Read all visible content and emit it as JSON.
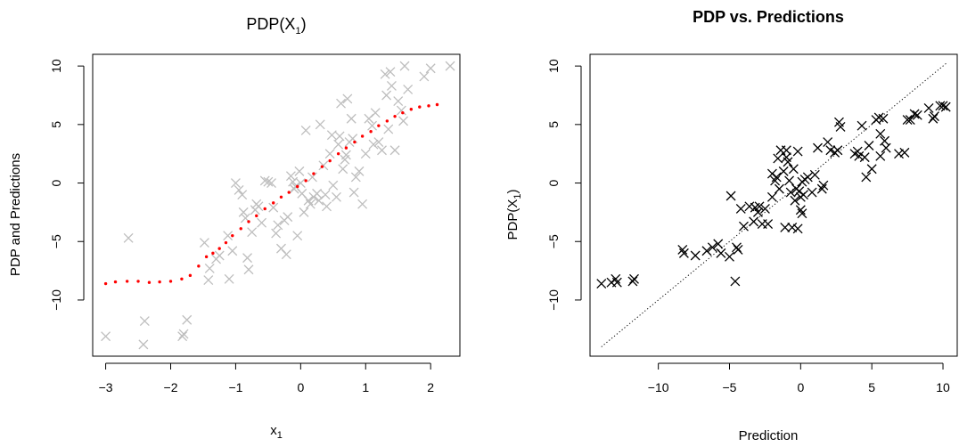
{
  "chart_data": [
    {
      "type": "scatter",
      "title": "PDP(X",
      "title_subscript": "1",
      "title_suffix": ")",
      "xlabel": "x",
      "xlabel_subscript": "1",
      "ylabel": "PDP and Predictions",
      "xlim": [
        -3.2,
        2.45
      ],
      "ylim": [
        -14.8,
        11.0
      ],
      "xticks": [
        -3,
        -2,
        -1,
        0,
        1,
        2
      ],
      "yticks": [
        -10,
        -5,
        0,
        5,
        10
      ],
      "xtick_labels": [
        "−3",
        "−2",
        "−1",
        "0",
        "1",
        "2"
      ],
      "ytick_labels": [
        "−10",
        "−5",
        "0",
        "5",
        "10"
      ],
      "grid": false,
      "colors": {
        "predictions": "#bebebe",
        "pdp": "#ff0000",
        "axes": "#000000"
      },
      "series": [
        {
          "marker": "x",
          "points": [
            [
              -3.0,
              -13.1
            ],
            [
              -2.65,
              -4.7
            ],
            [
              -2.4,
              -11.8
            ],
            [
              -2.42,
              -13.8
            ],
            [
              -1.8,
              -12.9
            ],
            [
              -1.82,
              -13.1
            ],
            [
              -1.75,
              -11.7
            ],
            [
              -1.48,
              -5.1
            ],
            [
              -1.42,
              -8.3
            ],
            [
              -1.4,
              -7.3
            ],
            [
              -1.3,
              -6.5
            ],
            [
              -1.25,
              -6.2
            ],
            [
              -1.12,
              -4.5
            ],
            [
              -1.1,
              -8.2
            ],
            [
              -1.05,
              -5.8
            ],
            [
              -1.0,
              0.0
            ],
            [
              -0.95,
              -0.6
            ],
            [
              -0.9,
              -1.0
            ],
            [
              -0.88,
              -2.5
            ],
            [
              -0.85,
              -3.0
            ],
            [
              -0.82,
              -6.4
            ],
            [
              -0.8,
              -7.4
            ],
            [
              -0.75,
              -4.2
            ],
            [
              -0.7,
              -2.3
            ],
            [
              -0.68,
              -1.8
            ],
            [
              -0.65,
              -2.0
            ],
            [
              -0.6,
              -3.4
            ],
            [
              -0.55,
              0.2
            ],
            [
              -0.5,
              0.1
            ],
            [
              -0.45,
              0.0
            ],
            [
              -0.42,
              -2.1
            ],
            [
              -0.38,
              -4.3
            ],
            [
              -0.35,
              -3.6
            ],
            [
              -0.3,
              -5.6
            ],
            [
              -0.25,
              -3.2
            ],
            [
              -0.22,
              -6.1
            ],
            [
              -0.2,
              -2.9
            ],
            [
              -0.15,
              0.6
            ],
            [
              -0.12,
              0.1
            ],
            [
              -0.1,
              -0.5
            ],
            [
              -0.08,
              -0.3
            ],
            [
              -0.05,
              -4.5
            ],
            [
              -0.02,
              1.0
            ],
            [
              0.0,
              0.0
            ],
            [
              0.02,
              -0.9
            ],
            [
              0.05,
              -2.5
            ],
            [
              0.08,
              4.5
            ],
            [
              0.12,
              -1.5
            ],
            [
              0.15,
              -1.8
            ],
            [
              0.18,
              0.5
            ],
            [
              0.2,
              -1.2
            ],
            [
              0.25,
              -0.9
            ],
            [
              0.28,
              -1.5
            ],
            [
              0.3,
              5.0
            ],
            [
              0.35,
              1.5
            ],
            [
              0.38,
              -1.0
            ],
            [
              0.4,
              -2.0
            ],
            [
              0.45,
              2.5
            ],
            [
              0.48,
              4.1
            ],
            [
              0.5,
              -0.2
            ],
            [
              0.55,
              -1.2
            ],
            [
              0.58,
              3.3
            ],
            [
              0.6,
              4.0
            ],
            [
              0.62,
              6.8
            ],
            [
              0.65,
              1.2
            ],
            [
              0.68,
              2.0
            ],
            [
              0.7,
              2.4
            ],
            [
              0.72,
              7.2
            ],
            [
              0.75,
              3.5
            ],
            [
              0.78,
              5.5
            ],
            [
              0.8,
              3.8
            ],
            [
              0.82,
              -0.8
            ],
            [
              0.85,
              0.5
            ],
            [
              0.9,
              1.0
            ],
            [
              0.95,
              -1.8
            ],
            [
              1.0,
              2.5
            ],
            [
              1.05,
              5.5
            ],
            [
              1.1,
              4.9
            ],
            [
              1.12,
              3.3
            ],
            [
              1.15,
              6.0
            ],
            [
              1.2,
              3.5
            ],
            [
              1.25,
              2.8
            ],
            [
              1.3,
              9.3
            ],
            [
              1.32,
              7.5
            ],
            [
              1.35,
              4.6
            ],
            [
              1.38,
              9.5
            ],
            [
              1.4,
              8.3
            ],
            [
              1.45,
              2.8
            ],
            [
              1.5,
              7.0
            ],
            [
              1.55,
              6.2
            ],
            [
              1.58,
              5.3
            ],
            [
              1.6,
              10.0
            ],
            [
              1.65,
              8.0
            ],
            [
              1.9,
              9.1
            ],
            [
              2.0,
              9.8
            ],
            [
              2.3,
              10.0
            ]
          ]
        },
        {
          "marker": "dot",
          "points": [
            [
              -3.0,
              -8.6
            ],
            [
              -2.85,
              -8.45
            ],
            [
              -2.67,
              -8.4
            ],
            [
              -2.5,
              -8.4
            ],
            [
              -2.33,
              -8.5
            ],
            [
              -2.17,
              -8.45
            ],
            [
              -2.0,
              -8.4
            ],
            [
              -1.83,
              -8.2
            ],
            [
              -1.7,
              -7.9
            ],
            [
              -1.57,
              -7.1
            ],
            [
              -1.45,
              -6.3
            ],
            [
              -1.35,
              -6.0
            ],
            [
              -1.25,
              -5.6
            ],
            [
              -1.15,
              -5.1
            ],
            [
              -1.05,
              -4.5
            ],
            [
              -0.92,
              -3.9
            ],
            [
              -0.8,
              -3.3
            ],
            [
              -0.68,
              -2.8
            ],
            [
              -0.55,
              -2.2
            ],
            [
              -0.42,
              -1.7
            ],
            [
              -0.3,
              -1.2
            ],
            [
              -0.18,
              -0.8
            ],
            [
              -0.05,
              -0.3
            ],
            [
              0.08,
              0.2
            ],
            [
              0.2,
              0.8
            ],
            [
              0.33,
              1.4
            ],
            [
              0.45,
              1.9
            ],
            [
              0.58,
              2.5
            ],
            [
              0.7,
              3.0
            ],
            [
              0.83,
              3.5
            ],
            [
              0.95,
              4.0
            ],
            [
              1.08,
              4.4
            ],
            [
              1.2,
              4.9
            ],
            [
              1.33,
              5.3
            ],
            [
              1.45,
              5.7
            ],
            [
              1.57,
              6.0
            ],
            [
              1.7,
              6.3
            ],
            [
              1.83,
              6.5
            ],
            [
              1.97,
              6.6
            ],
            [
              2.1,
              6.7
            ]
          ]
        }
      ]
    },
    {
      "type": "scatter",
      "title": "PDP vs. Predictions",
      "xlabel": "Prediction",
      "ylabel": "PDP(X",
      "ylabel_subscript": "1",
      "ylabel_suffix": ")",
      "xlim": [
        -14.8,
        11.0
      ],
      "ylim": [
        -14.8,
        11.0
      ],
      "xticks": [
        -10,
        -5,
        0,
        5,
        10
      ],
      "yticks": [
        -10,
        -5,
        0,
        5,
        10
      ],
      "xtick_labels": [
        "−10",
        "−5",
        "0",
        "5",
        "10"
      ],
      "ytick_labels": [
        "−10",
        "−5",
        "0",
        "5",
        "10"
      ],
      "grid": false,
      "reference_line": {
        "style": "dotted",
        "from": [
          -14.0,
          -14.0
        ],
        "to": [
          10.3,
          10.3
        ]
      },
      "colors": {
        "points": "#000000",
        "reference": "#000000",
        "axes": "#000000"
      },
      "series": [
        {
          "marker": "x",
          "points": [
            [
              -14.0,
              -8.6
            ],
            [
              -13.3,
              -8.5
            ],
            [
              -13.0,
              -8.2
            ],
            [
              -12.9,
              -8.5
            ],
            [
              -11.8,
              -8.4
            ],
            [
              -11.7,
              -8.2
            ],
            [
              -8.3,
              -5.7
            ],
            [
              -8.2,
              -6.0
            ],
            [
              -7.4,
              -6.2
            ],
            [
              -6.6,
              -5.8
            ],
            [
              -6.2,
              -5.5
            ],
            [
              -5.8,
              -5.2
            ],
            [
              -5.6,
              -6.0
            ],
            [
              -5.0,
              -6.3
            ],
            [
              -4.9,
              -1.1
            ],
            [
              -4.6,
              -8.4
            ],
            [
              -4.5,
              -5.5
            ],
            [
              -4.4,
              -5.7
            ],
            [
              -4.2,
              -2.2
            ],
            [
              -4.0,
              -3.7
            ],
            [
              -3.6,
              -2.0
            ],
            [
              -3.3,
              -3.3
            ],
            [
              -3.2,
              -2.1
            ],
            [
              -3.0,
              -2.5
            ],
            [
              -2.9,
              -2.0
            ],
            [
              -2.7,
              -3.5
            ],
            [
              -2.5,
              -2.2
            ],
            [
              -2.3,
              -3.5
            ],
            [
              -2.0,
              -1.2
            ],
            [
              -2.0,
              0.8
            ],
            [
              -1.8,
              0.2
            ],
            [
              -1.7,
              0.5
            ],
            [
              -1.6,
              2.1
            ],
            [
              -1.5,
              -0.5
            ],
            [
              -1.4,
              2.8
            ],
            [
              -1.2,
              1.0
            ],
            [
              -1.1,
              -3.8
            ],
            [
              -1.0,
              2.8
            ],
            [
              -1.0,
              2.2
            ],
            [
              -0.9,
              1.8
            ],
            [
              -0.8,
              0.2
            ],
            [
              -0.7,
              -0.8
            ],
            [
              -0.6,
              -3.8
            ],
            [
              -0.5,
              1.2
            ],
            [
              -0.4,
              -1.5
            ],
            [
              -0.3,
              -0.5
            ],
            [
              -0.2,
              2.7
            ],
            [
              -0.2,
              -3.9
            ],
            [
              -0.1,
              -0.7
            ],
            [
              0.0,
              -1.2
            ],
            [
              0.0,
              -2.3
            ],
            [
              0.1,
              0.1
            ],
            [
              0.1,
              -2.6
            ],
            [
              0.2,
              -1.0
            ],
            [
              0.3,
              0.3
            ],
            [
              0.5,
              0.5
            ],
            [
              0.8,
              -0.8
            ],
            [
              1.0,
              0.7
            ],
            [
              1.2,
              3.0
            ],
            [
              1.5,
              -0.5
            ],
            [
              1.6,
              -0.2
            ],
            [
              1.9,
              3.5
            ],
            [
              2.1,
              2.8
            ],
            [
              2.4,
              2.6
            ],
            [
              2.6,
              2.8
            ],
            [
              2.7,
              5.2
            ],
            [
              2.8,
              4.8
            ],
            [
              3.8,
              2.5
            ],
            [
              4.0,
              2.7
            ],
            [
              4.1,
              2.3
            ],
            [
              4.3,
              4.9
            ],
            [
              4.5,
              2.2
            ],
            [
              4.6,
              0.5
            ],
            [
              4.8,
              3.2
            ],
            [
              5.0,
              1.2
            ],
            [
              5.3,
              5.4
            ],
            [
              5.5,
              5.6
            ],
            [
              5.6,
              4.2
            ],
            [
              5.6,
              2.3
            ],
            [
              5.8,
              5.5
            ],
            [
              5.9,
              3.6
            ],
            [
              6.0,
              3.0
            ],
            [
              6.9,
              2.5
            ],
            [
              7.3,
              2.6
            ],
            [
              7.5,
              5.4
            ],
            [
              7.7,
              5.4
            ],
            [
              8.0,
              5.9
            ],
            [
              8.2,
              5.8
            ],
            [
              9.0,
              6.4
            ],
            [
              9.3,
              5.5
            ],
            [
              9.4,
              5.7
            ],
            [
              9.8,
              6.6
            ],
            [
              10.0,
              6.6
            ],
            [
              10.2,
              6.5
            ]
          ]
        }
      ]
    }
  ]
}
